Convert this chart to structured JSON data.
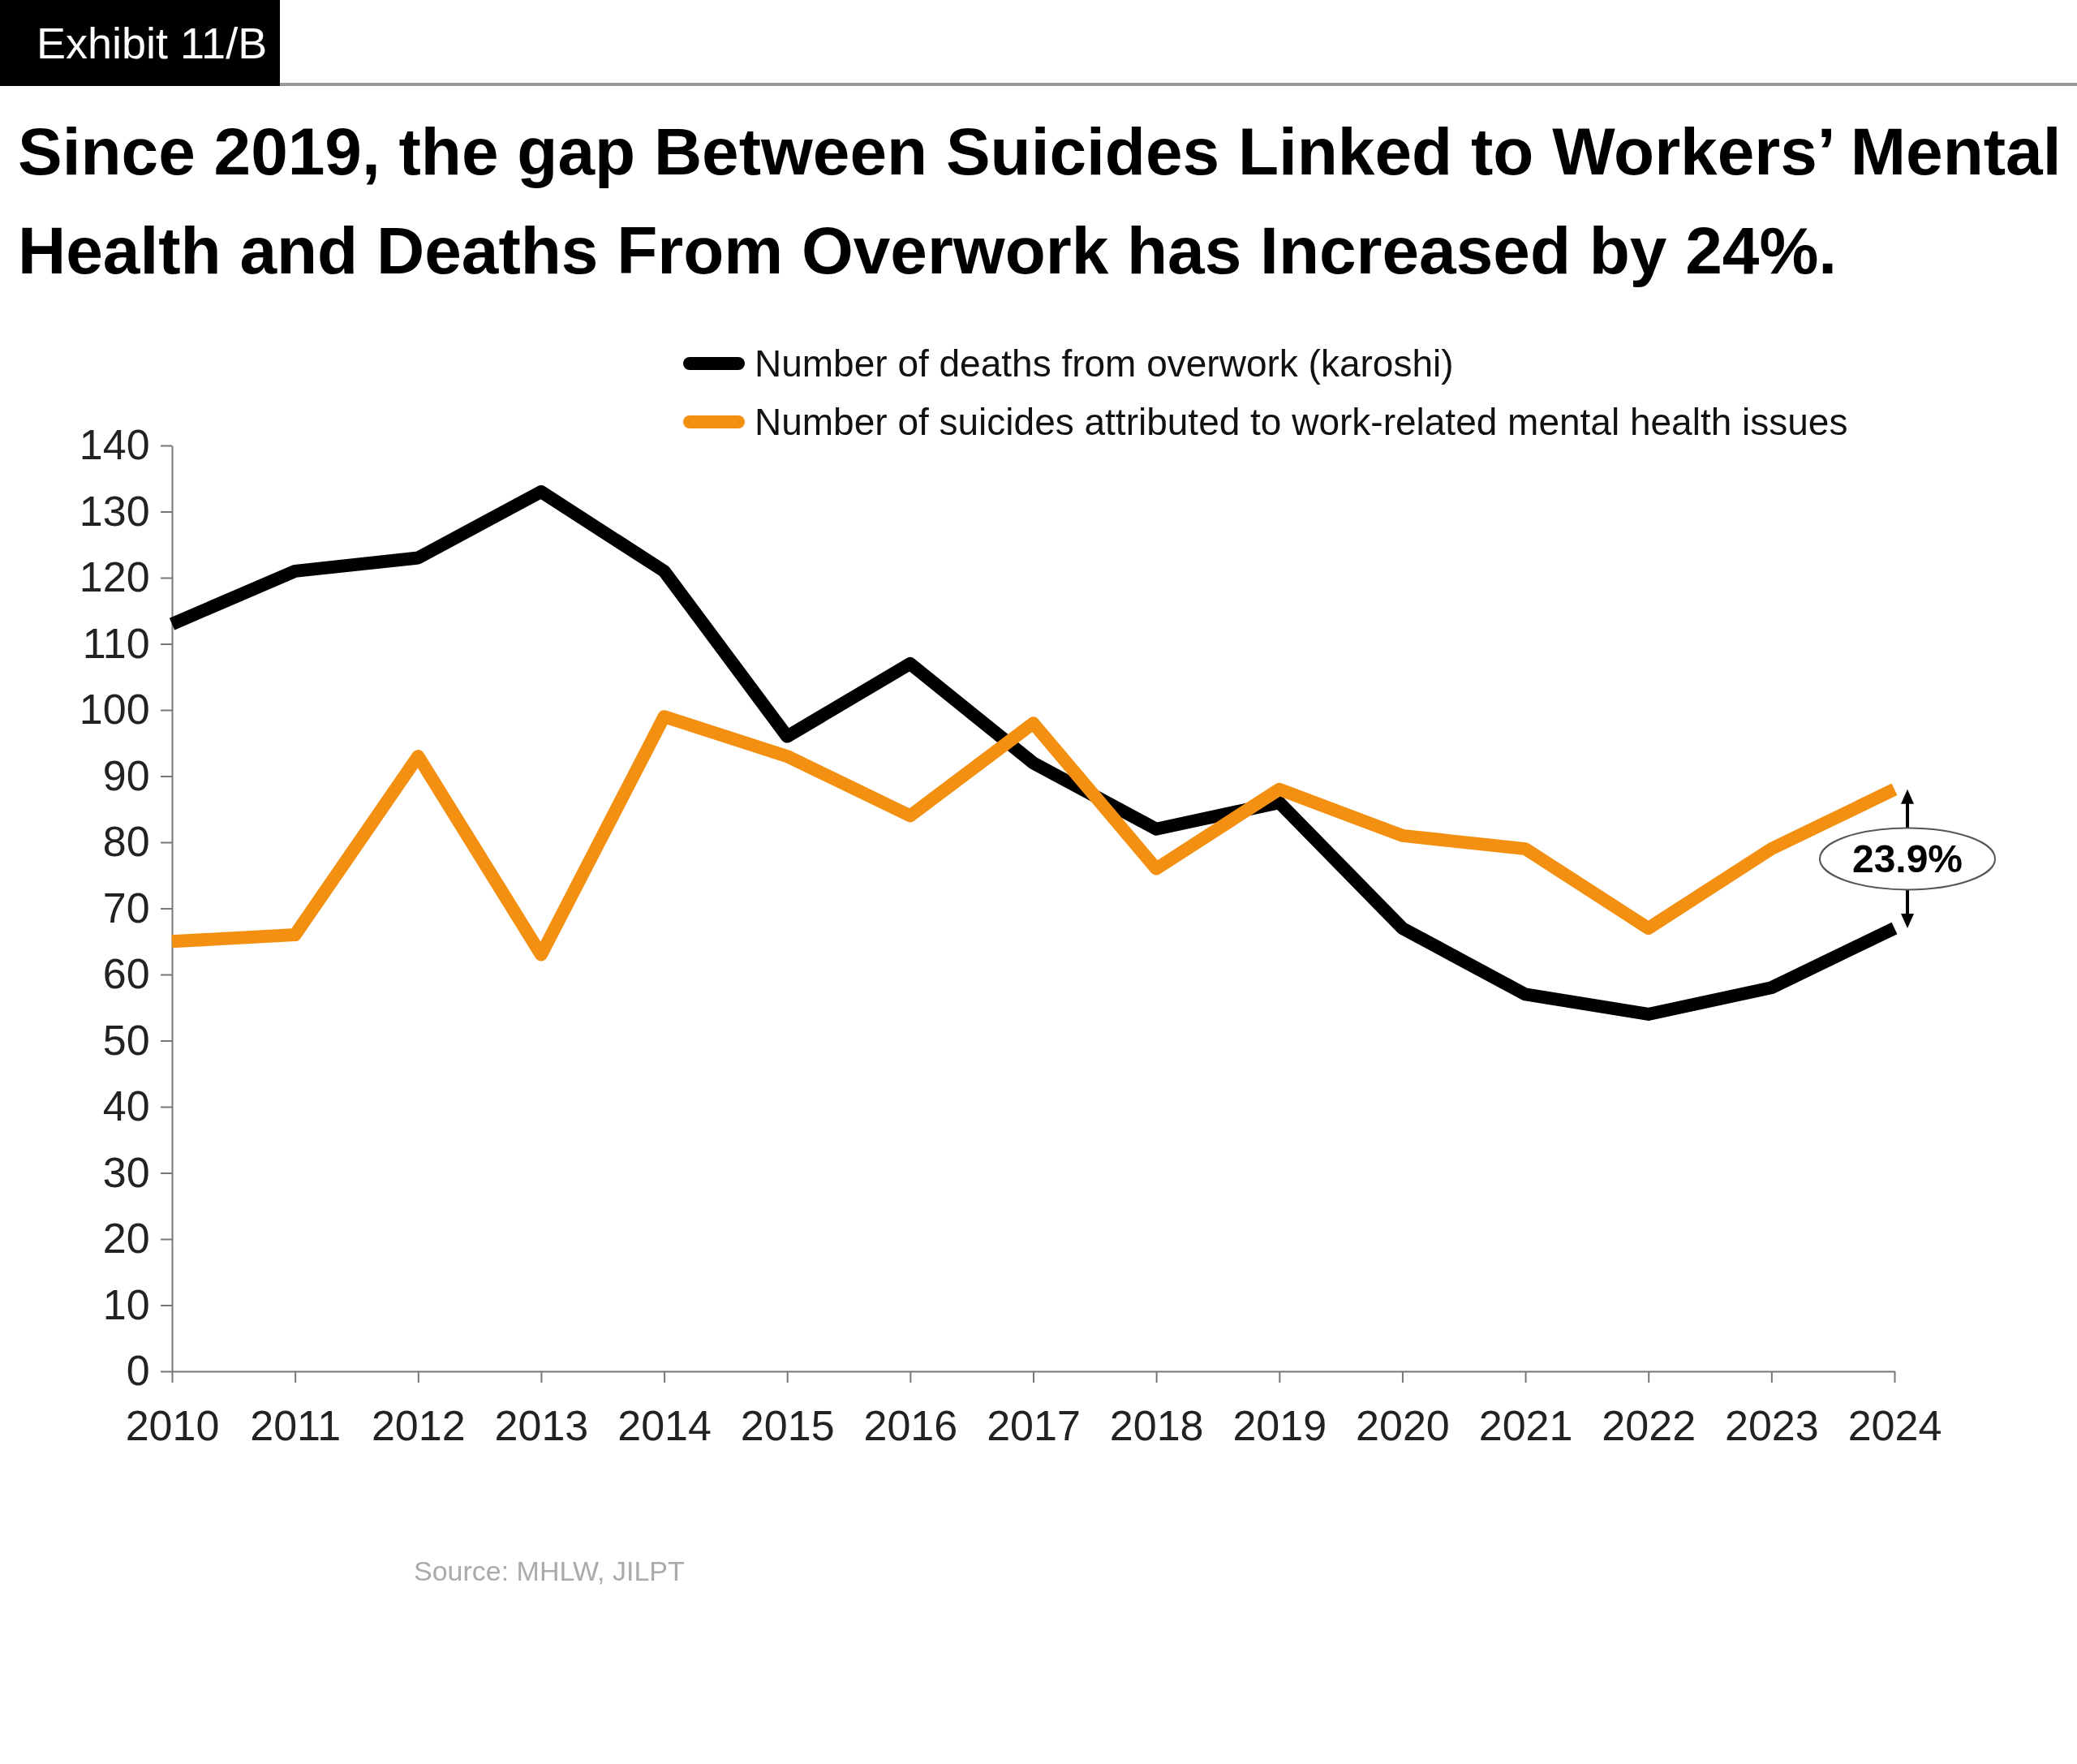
{
  "chart_data": {
    "type": "line",
    "title": "Since 2019, the gap Between Suicides Linked to Workers’ Mental Health and Deaths From Overwork has Increased by 24%.",
    "subtitle": "Exhibit 11/B",
    "x": [
      2010,
      2011,
      2012,
      2013,
      2014,
      2015,
      2016,
      2017,
      2018,
      2019,
      2020,
      2021,
      2022,
      2023,
      2024
    ],
    "series": [
      {
        "name": "Number of  deaths from overwork (karoshi)",
        "color": "#000000",
        "values": [
          113,
          121,
          123,
          133,
          121,
          96,
          107,
          92,
          82,
          86,
          67,
          57,
          54,
          58,
          67
        ]
      },
      {
        "name": "Number of suicides attributed to work-related mental health issues",
        "color": "#f39012",
        "values": [
          65,
          66,
          93,
          63,
          99,
          93,
          84,
          98,
          76,
          88,
          81,
          79,
          67,
          79,
          88
        ]
      }
    ],
    "xlim": [
      2010,
      2024
    ],
    "xticks": [
      2010,
      2011,
      2012,
      2013,
      2014,
      2015,
      2016,
      2017,
      2018,
      2019,
      2020,
      2021,
      2022,
      2023,
      2024
    ],
    "ylim": [
      0,
      140
    ],
    "yticks": [
      0,
      10,
      20,
      30,
      40,
      50,
      60,
      70,
      80,
      90,
      100,
      110,
      120,
      130,
      140
    ],
    "grid": false,
    "legend": "top",
    "marker": "none",
    "line_style": "solid",
    "annotations": [
      "23.9%",
      "Source: MHLW, JILPT"
    ]
  }
}
